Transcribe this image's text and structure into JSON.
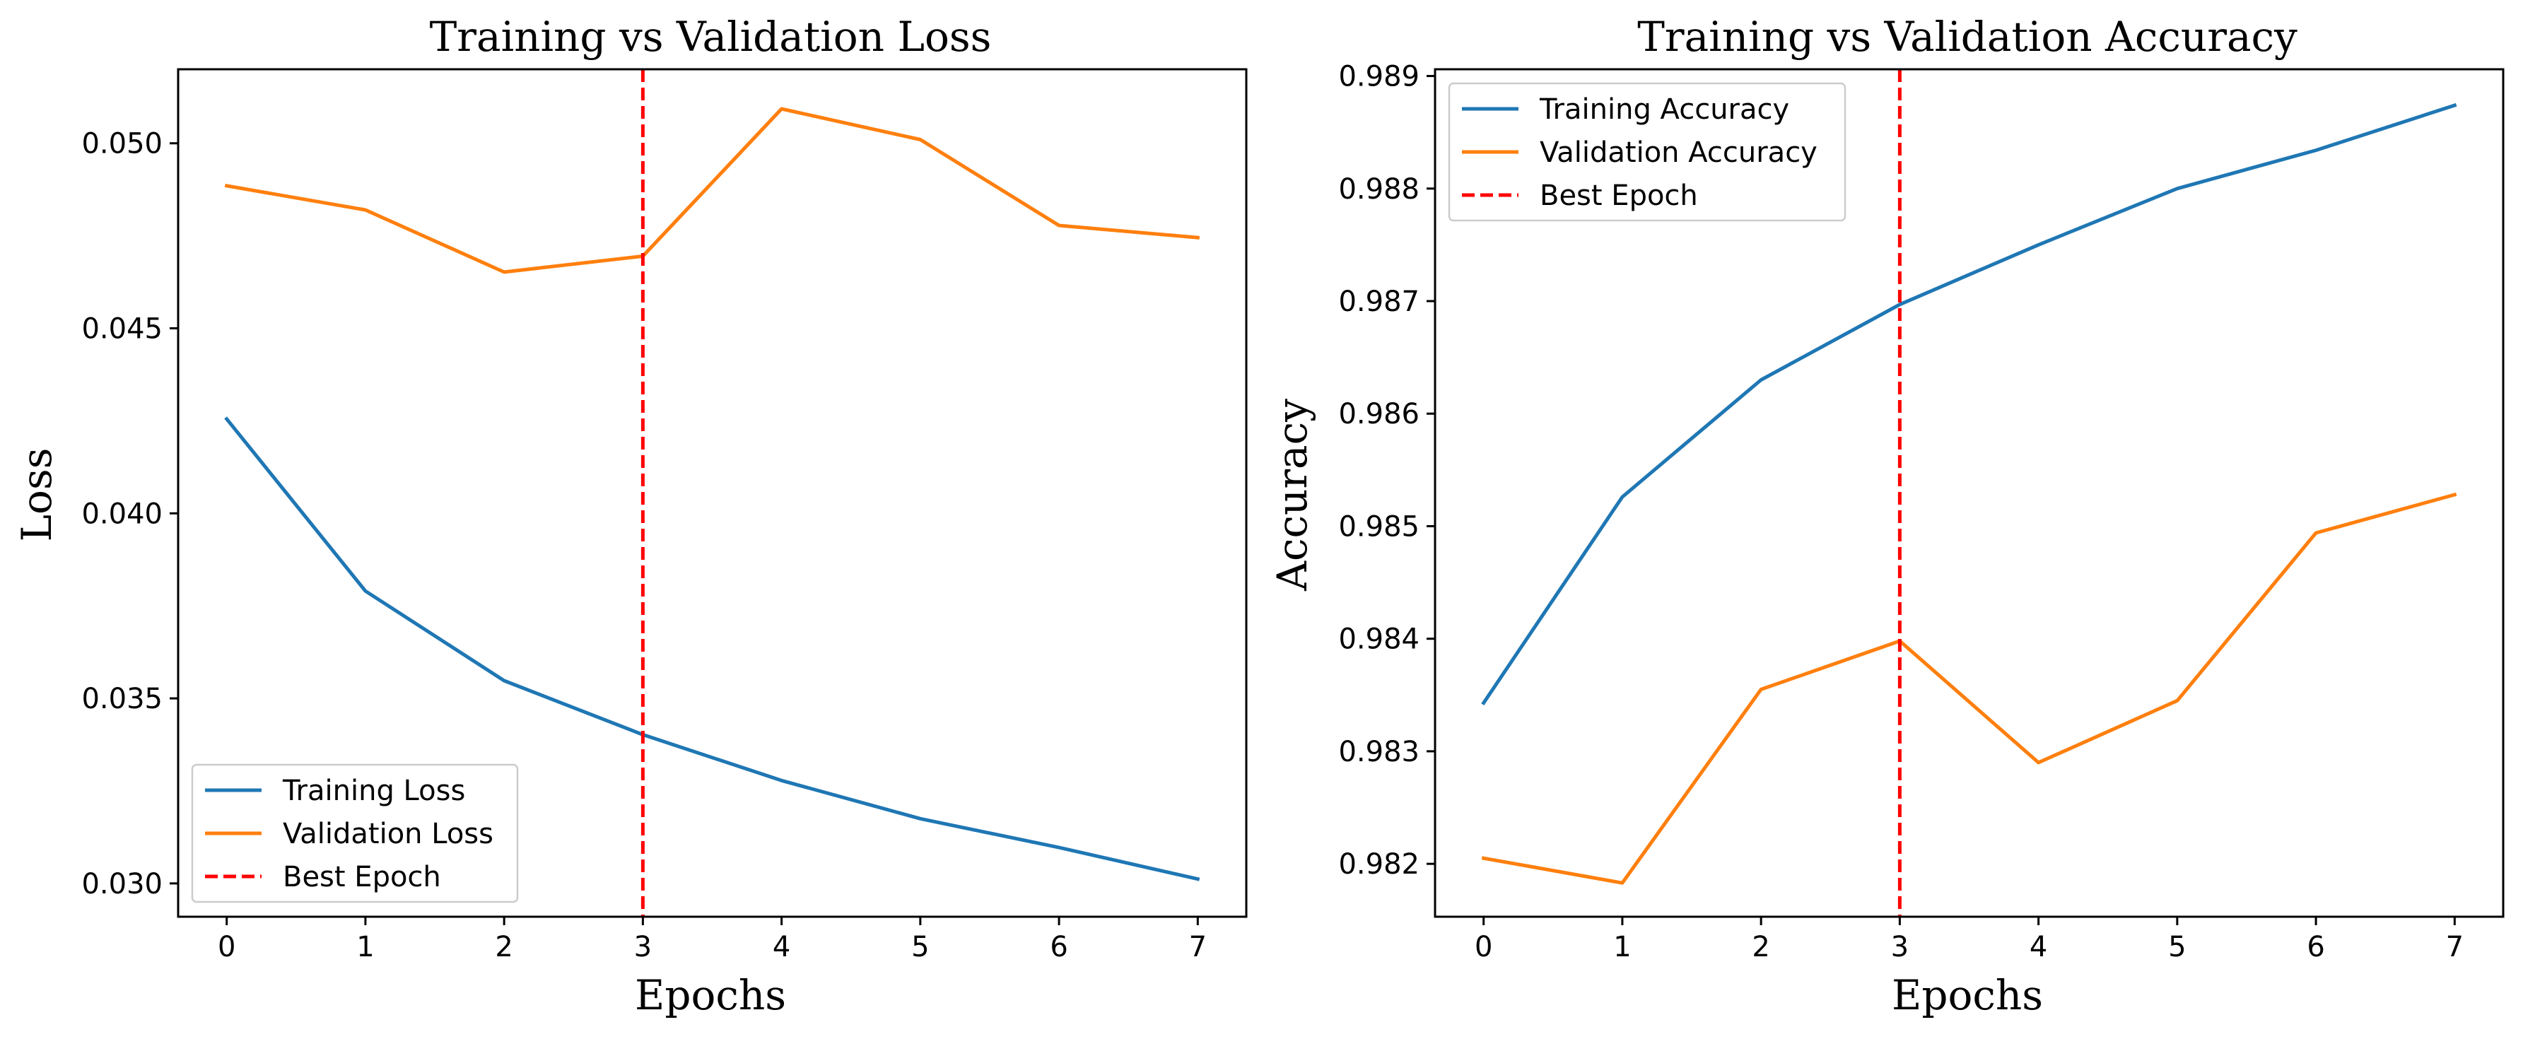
{
  "chart_data": [
    {
      "type": "line",
      "title": "Training vs Validation Loss",
      "xlabel": "Epochs",
      "ylabel": "Loss",
      "xlim": [
        -0.35,
        7.35
      ],
      "ylim": [
        0.0291,
        0.052
      ],
      "x": [
        0,
        1,
        2,
        3,
        4,
        5,
        6,
        7
      ],
      "xticks": [
        0,
        1,
        2,
        3,
        4,
        5,
        6,
        7
      ],
      "xtick_labels": [
        "0",
        "1",
        "2",
        "3",
        "4",
        "5",
        "6",
        "7"
      ],
      "yticks": [
        0.03,
        0.035,
        0.04,
        0.045,
        0.05
      ],
      "ytick_labels": [
        "0.030",
        "0.035",
        "0.040",
        "0.045",
        "0.050"
      ],
      "series": [
        {
          "name": "Training Loss",
          "color": "#1f77b4",
          "values": [
            0.04255,
            0.0379,
            0.03548,
            0.03402,
            0.03278,
            0.03175,
            0.03097,
            0.03012
          ]
        },
        {
          "name": "Validation Loss",
          "color": "#ff7f0e",
          "values": [
            0.04885,
            0.0482,
            0.04652,
            0.04695,
            0.05093,
            0.0501,
            0.04778,
            0.04745
          ]
        }
      ],
      "vline": {
        "name": "Best Epoch",
        "x": 3,
        "color": "#ff0000",
        "style": "dashed"
      },
      "legend": {
        "position": "lower-left",
        "entries": [
          "Training Loss",
          "Validation Loss",
          "Best Epoch"
        ]
      }
    },
    {
      "type": "line",
      "title": "Training vs Validation Accuracy",
      "xlabel": "Epochs",
      "ylabel": "Accuracy",
      "xlim": [
        -0.35,
        7.35
      ],
      "ylim": [
        0.98153,
        0.98906
      ],
      "x": [
        0,
        1,
        2,
        3,
        4,
        5,
        6,
        7
      ],
      "xticks": [
        0,
        1,
        2,
        3,
        4,
        5,
        6,
        7
      ],
      "xtick_labels": [
        "0",
        "1",
        "2",
        "3",
        "4",
        "5",
        "6",
        "7"
      ],
      "yticks": [
        0.982,
        0.983,
        0.984,
        0.985,
        0.986,
        0.987,
        0.988,
        0.989
      ],
      "ytick_labels": [
        "0.982",
        "0.983",
        "0.984",
        "0.985",
        "0.986",
        "0.987",
        "0.988",
        "0.989"
      ],
      "series": [
        {
          "name": "Training Accuracy",
          "color": "#1f77b4",
          "values": [
            0.98343,
            0.98526,
            0.9863,
            0.98697,
            0.9875,
            0.988,
            0.98834,
            0.98874
          ]
        },
        {
          "name": "Validation Accuracy",
          "color": "#ff7f0e",
          "values": [
            0.98205,
            0.98183,
            0.98355,
            0.98398,
            0.9829,
            0.98345,
            0.98494,
            0.98528
          ]
        }
      ],
      "vline": {
        "name": "Best Epoch",
        "x": 3,
        "color": "#ff0000",
        "style": "dashed"
      },
      "legend": {
        "position": "upper-left",
        "entries": [
          "Training Accuracy",
          "Validation Accuracy",
          "Best Epoch"
        ]
      }
    }
  ]
}
